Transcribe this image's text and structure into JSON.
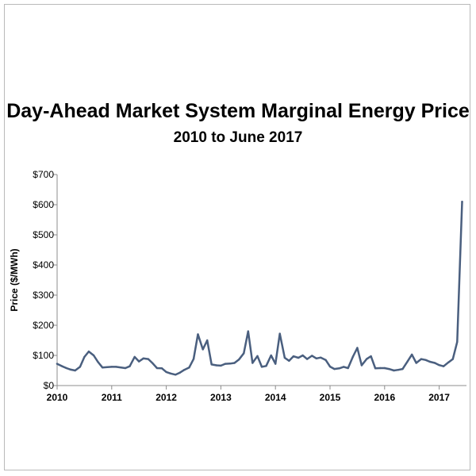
{
  "chart_data": {
    "type": "line",
    "title": "Day-Ahead Market System Marginal Energy Price",
    "subtitle": "2010 to June 2017",
    "xlabel": "",
    "ylabel": "Price ($/MWh)",
    "ylim": [
      0,
      700
    ],
    "y_ticks": [
      0,
      100,
      200,
      300,
      400,
      500,
      600,
      700
    ],
    "y_tick_labels": [
      "$0",
      "$100",
      "$200",
      "$300",
      "$400",
      "$500",
      "$600",
      "$700"
    ],
    "x_ticks": [
      2010,
      2011,
      2012,
      2013,
      2014,
      2015,
      2016,
      2017
    ],
    "x_tick_labels": [
      "2010",
      "2011",
      "2012",
      "2013",
      "2014",
      "2015",
      "2016",
      "2017"
    ],
    "xlim": [
      2010,
      2017.5
    ],
    "grid": false,
    "series_color": "#4a5f7f",
    "series": [
      {
        "x": [
          2010.0,
          2010.08,
          2010.17,
          2010.25,
          2010.33,
          2010.42,
          2010.5,
          2010.58,
          2010.67,
          2010.75,
          2010.83,
          2010.92,
          2011.0,
          2011.08,
          2011.17,
          2011.25,
          2011.33,
          2011.42,
          2011.5,
          2011.58,
          2011.67,
          2011.75,
          2011.83,
          2011.92,
          2012.0,
          2012.08,
          2012.17,
          2012.25,
          2012.33,
          2012.42,
          2012.5,
          2012.58,
          2012.67,
          2012.75,
          2012.83,
          2012.92,
          2013.0,
          2013.08,
          2013.17,
          2013.25,
          2013.33,
          2013.42,
          2013.5,
          2013.58,
          2013.67,
          2013.75,
          2013.83,
          2013.92,
          2014.0,
          2014.08,
          2014.17,
          2014.25,
          2014.33,
          2014.42,
          2014.5,
          2014.58,
          2014.67,
          2014.75,
          2014.83,
          2014.92,
          2015.0,
          2015.08,
          2015.17,
          2015.25,
          2015.33,
          2015.42,
          2015.5,
          2015.58,
          2015.67,
          2015.75,
          2015.83,
          2015.92,
          2016.0,
          2016.08,
          2016.17,
          2016.25,
          2016.33,
          2016.42,
          2016.5,
          2016.58,
          2016.67,
          2016.75,
          2016.83,
          2016.92,
          2017.0,
          2017.08,
          2017.17,
          2017.25,
          2017.33,
          2017.42
        ],
        "values": [
          72,
          65,
          58,
          53,
          50,
          62,
          95,
          113,
          100,
          78,
          60,
          61,
          62,
          62,
          60,
          58,
          64,
          95,
          80,
          90,
          88,
          74,
          58,
          57,
          45,
          40,
          36,
          43,
          52,
          60,
          88,
          170,
          120,
          150,
          70,
          67,
          66,
          72,
          73,
          75,
          86,
          107,
          180,
          75,
          98,
          62,
          65,
          100,
          72,
          172,
          92,
          82,
          97,
          92,
          100,
          88,
          99,
          90,
          93,
          85,
          63,
          55,
          57,
          62,
          58,
          96,
          125,
          67,
          88,
          97,
          57,
          58,
          58,
          55,
          50,
          52,
          55,
          80,
          103,
          75,
          88,
          85,
          79,
          75,
          68,
          64,
          77,
          88,
          145,
          610
        ]
      }
    ]
  }
}
